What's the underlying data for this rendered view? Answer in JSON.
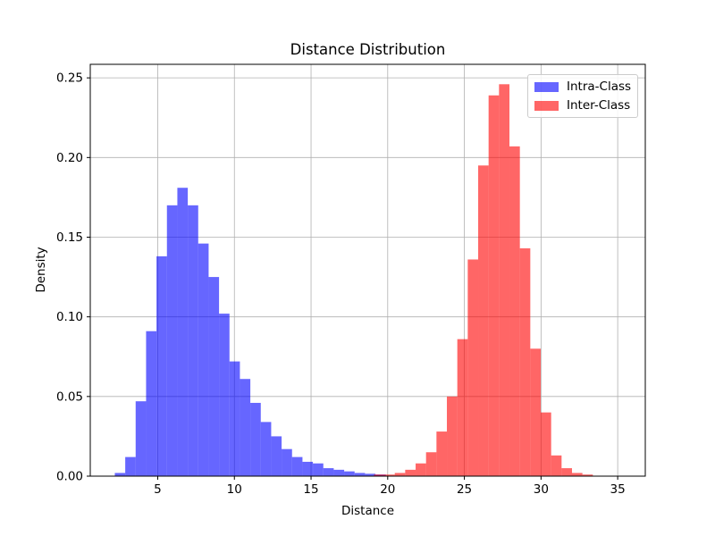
{
  "chart_data": {
    "type": "bar",
    "subtype": "histogram",
    "title": "Distance Distribution",
    "xlabel": "Distance",
    "ylabel": "Density",
    "xlim": [
      0.6,
      36.8
    ],
    "ylim": [
      0,
      0.2585
    ],
    "xticks": [
      5,
      10,
      15,
      20,
      25,
      30,
      35
    ],
    "xtick_labels": [
      "5",
      "10",
      "15",
      "20",
      "25",
      "30",
      "35"
    ],
    "yticks": [
      0,
      0.05,
      0.1,
      0.15,
      0.2,
      0.25
    ],
    "ytick_labels": [
      "0.00",
      "0.05",
      "0.10",
      "0.15",
      "0.20",
      "0.25"
    ],
    "grid": true,
    "grid_color": "#b0b0b0",
    "spine_color": "#000000",
    "legend_position": "upper right",
    "series": [
      {
        "name": "Intra-Class",
        "color": "#0000ff",
        "display_color": "#6666ff",
        "alpha": 0.6,
        "bin_start": 2.2,
        "bin_width": 0.68,
        "densities": [
          0.002,
          0.012,
          0.047,
          0.091,
          0.138,
          0.17,
          0.181,
          0.17,
          0.146,
          0.125,
          0.102,
          0.072,
          0.061,
          0.046,
          0.034,
          0.025,
          0.017,
          0.012,
          0.009,
          0.008,
          0.005,
          0.004,
          0.003,
          0.002,
          0.0015,
          0.001
        ]
      },
      {
        "name": "Inter-Class",
        "color": "#ff0000",
        "display_color": "#ff6666",
        "alpha": 0.6,
        "bin_start": 19.1,
        "bin_width": 0.68,
        "densities": [
          0.001,
          0.001,
          0.002,
          0.004,
          0.008,
          0.015,
          0.028,
          0.05,
          0.086,
          0.136,
          0.195,
          0.239,
          0.246,
          0.207,
          0.143,
          0.08,
          0.04,
          0.013,
          0.005,
          0.002,
          0.001
        ]
      }
    ]
  }
}
